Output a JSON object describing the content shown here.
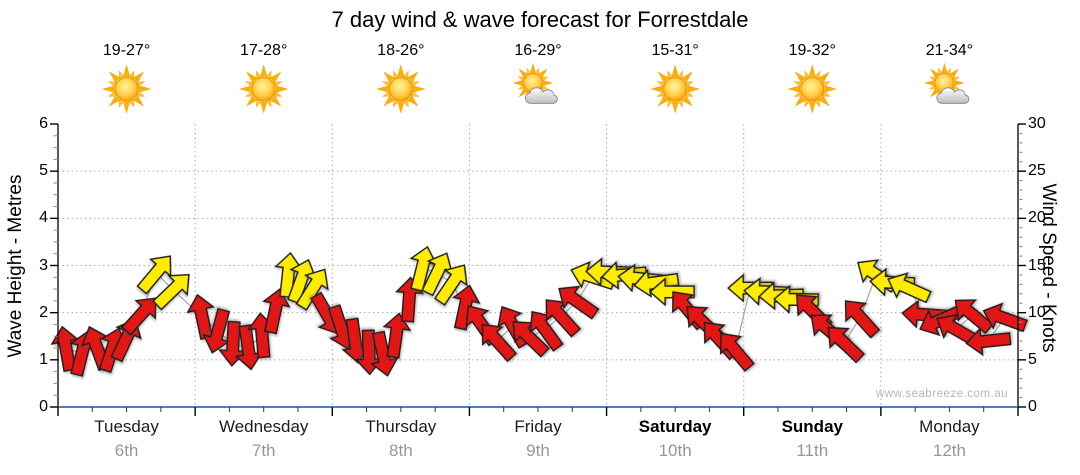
{
  "title": "7 day wind & wave forecast for Forrestdale",
  "watermark": "www.seabreeze.com.au",
  "axes": {
    "left_label": "Wave Height - Metres",
    "left_ticks": [
      "0",
      "1",
      "2",
      "3",
      "4",
      "5",
      "6"
    ],
    "right_label": "Wind Speed - Knots",
    "right_ticks": [
      "0",
      "5",
      "10",
      "15",
      "20",
      "25",
      "30"
    ]
  },
  "days": [
    {
      "name": "Tuesday",
      "date": "6th",
      "temp": "19-27°",
      "icon": "sunny",
      "bold": false
    },
    {
      "name": "Wednesday",
      "date": "7th",
      "temp": "17-28°",
      "icon": "sunny",
      "bold": false
    },
    {
      "name": "Thursday",
      "date": "8th",
      "temp": "18-26°",
      "icon": "sunny",
      "bold": false
    },
    {
      "name": "Friday",
      "date": "9th",
      "temp": "16-29°",
      "icon": "partly-cloudy",
      "bold": false
    },
    {
      "name": "Saturday",
      "date": "10th",
      "temp": "15-31°",
      "icon": "sunny",
      "bold": true
    },
    {
      "name": "Sunday",
      "date": "11th",
      "temp": "19-32°",
      "icon": "sunny",
      "bold": true
    },
    {
      "name": "Monday",
      "date": "12th",
      "temp": "21-34°",
      "icon": "partly-cloudy",
      "bold": false
    }
  ],
  "chart_data": {
    "type": "scatter",
    "title": "7 day wind & wave forecast for Forrestdale",
    "x_categories": [
      "Tuesday 6th",
      "Wednesday 7th",
      "Thursday 8th",
      "Friday 9th",
      "Saturday 10th",
      "Sunday 11th",
      "Monday 12th"
    ],
    "y_left": {
      "label": "Wave Height - Metres",
      "range": [
        0,
        6
      ],
      "gridlines": [
        1,
        2,
        3,
        4,
        5
      ]
    },
    "y_right": {
      "label": "Wind Speed - Knots",
      "range": [
        0,
        30
      ],
      "gridlines": [
        5,
        10,
        15,
        20,
        25
      ]
    },
    "legend": "arrows: [t_days_from_start, wind_speed_knots, direction_deg_clockwise_from_up, color r=red y=yellow]",
    "arrows": [
      [
        0.058,
        6.2,
        -10,
        "r"
      ],
      [
        0.175,
        5.7,
        14,
        "r"
      ],
      [
        0.284,
        6.3,
        -20,
        "r"
      ],
      [
        0.394,
        6.1,
        18,
        "r"
      ],
      [
        0.496,
        7.2,
        25,
        "r"
      ],
      [
        0.605,
        9.8,
        42,
        "r"
      ],
      [
        0.715,
        14.2,
        40,
        "y"
      ],
      [
        0.839,
        12.4,
        46,
        "y"
      ],
      [
        1.05,
        9.6,
        -12,
        "r"
      ],
      [
        1.167,
        8.0,
        195,
        "r"
      ],
      [
        1.276,
        6.7,
        183,
        "r"
      ],
      [
        1.386,
        6.3,
        172,
        "r"
      ],
      [
        1.488,
        7.6,
        -5,
        "r"
      ],
      [
        1.583,
        10.2,
        12,
        "r"
      ],
      [
        1.678,
        14.0,
        6,
        "y"
      ],
      [
        1.772,
        13.4,
        20,
        "y"
      ],
      [
        1.86,
        12.6,
        32,
        "y"
      ],
      [
        1.962,
        9.8,
        150,
        "r"
      ],
      [
        2.064,
        8.4,
        162,
        "r"
      ],
      [
        2.166,
        7.0,
        172,
        "r"
      ],
      [
        2.268,
        5.8,
        178,
        "r"
      ],
      [
        2.37,
        5.6,
        168,
        "r"
      ],
      [
        2.465,
        7.6,
        8,
        "r"
      ],
      [
        2.56,
        11.4,
        4,
        "r"
      ],
      [
        2.655,
        14.7,
        14,
        "y"
      ],
      [
        2.764,
        14.2,
        26,
        "y"
      ],
      [
        2.874,
        13.1,
        34,
        "y"
      ],
      [
        2.968,
        10.6,
        12,
        "r"
      ],
      [
        3.085,
        8.8,
        -35,
        "r"
      ],
      [
        3.202,
        7.0,
        -42,
        "r"
      ],
      [
        3.318,
        8.6,
        -30,
        "r"
      ],
      [
        3.435,
        7.4,
        -46,
        "r"
      ],
      [
        3.552,
        8.2,
        -36,
        "r"
      ],
      [
        3.668,
        9.6,
        -42,
        "r"
      ],
      [
        3.785,
        11.2,
        -55,
        "r"
      ],
      [
        3.895,
        13.8,
        -72,
        "y"
      ],
      [
        4.011,
        14.3,
        -88,
        "y"
      ],
      [
        4.128,
        14.0,
        -95,
        "y"
      ],
      [
        4.245,
        13.6,
        -84,
        "y"
      ],
      [
        4.361,
        13.2,
        -98,
        "y"
      ],
      [
        4.478,
        12.2,
        -90,
        "y"
      ],
      [
        4.588,
        10.4,
        -40,
        "r"
      ],
      [
        4.704,
        9.0,
        -46,
        "r"
      ],
      [
        4.821,
        7.2,
        -42,
        "r"
      ],
      [
        4.938,
        6.0,
        -40,
        "r"
      ],
      [
        5.047,
        12.6,
        -90,
        "y"
      ],
      [
        5.164,
        12.2,
        -87,
        "y"
      ],
      [
        5.273,
        11.8,
        -92,
        "y"
      ],
      [
        5.383,
        11.4,
        -89,
        "y"
      ],
      [
        5.5,
        10.2,
        -45,
        "r"
      ],
      [
        5.616,
        8.2,
        -50,
        "r"
      ],
      [
        5.733,
        6.8,
        -46,
        "r"
      ],
      [
        5.85,
        9.5,
        -42,
        "r"
      ],
      [
        5.966,
        14.0,
        -56,
        "y"
      ],
      [
        6.083,
        13.2,
        -87,
        "y"
      ],
      [
        6.2,
        12.6,
        -66,
        "y"
      ],
      [
        6.316,
        9.8,
        -86,
        "r"
      ],
      [
        6.433,
        9.2,
        -114,
        "r"
      ],
      [
        6.55,
        8.2,
        -60,
        "r"
      ],
      [
        6.667,
        9.8,
        -50,
        "r"
      ],
      [
        6.783,
        7.0,
        -96,
        "r"
      ],
      [
        6.9,
        9.4,
        -70,
        "r"
      ]
    ]
  },
  "colors": {
    "arrow_red": "#e31212",
    "arrow_yellow": "#ffec00",
    "arrow_outline": "#1f1f1f",
    "bottom_axis": "#4d7ebf",
    "grid": "#aaaaaa",
    "connector_line": "#a8a8a8",
    "date_text": "#979797",
    "watermark_text": "#b6b6b6"
  }
}
